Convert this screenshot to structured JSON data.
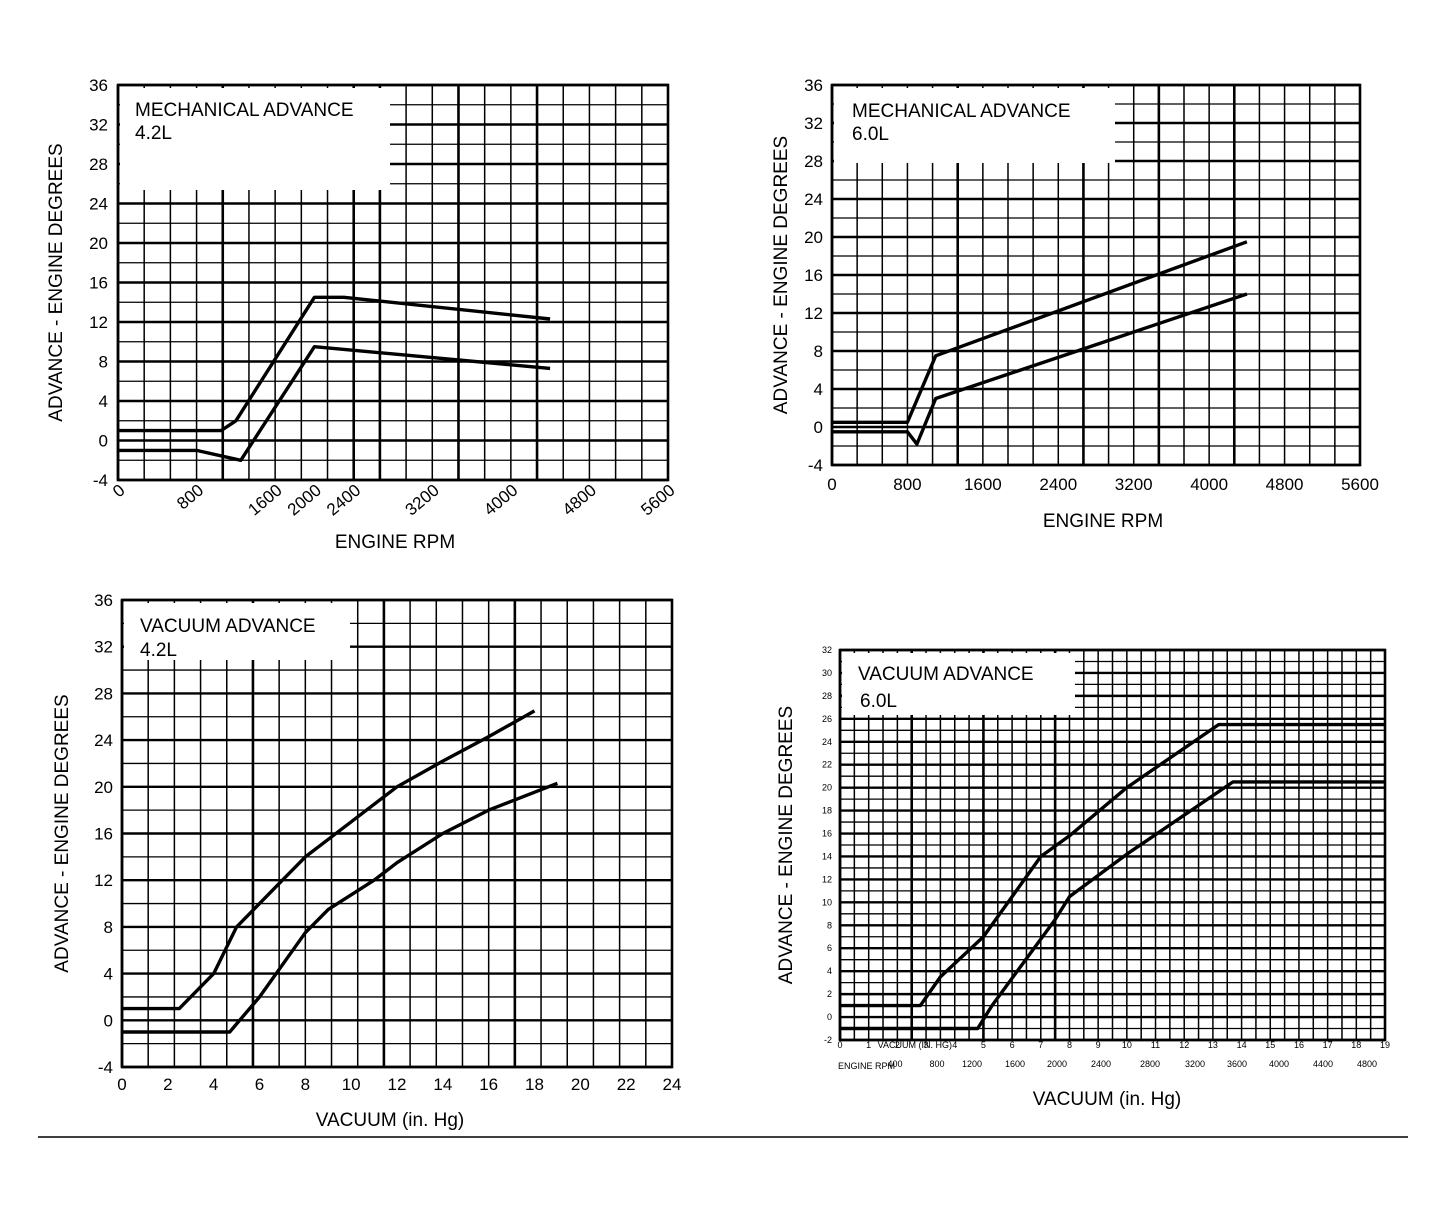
{
  "chart_data": [
    {
      "type": "line",
      "title": "MECHANICAL ADVANCE",
      "subtitle": "4.2L",
      "xlabel": "ENGINE RPM",
      "ylabel": "ADVANCE  -  ENGINE DEGREES",
      "xlim": [
        0,
        5600
      ],
      "ylim": [
        -4,
        36
      ],
      "x_ticks": [
        "0",
        "800",
        "1600",
        "2000",
        "2400",
        "3200",
        "4000",
        "4800",
        "5600"
      ],
      "y_ticks": [
        "36",
        "32",
        "28",
        "24",
        "20",
        "16",
        "12",
        "8",
        "4",
        "0",
        "-4"
      ],
      "grid": true,
      "series": [
        {
          "x": [
            0,
            1050,
            1200,
            2000,
            2300,
            4400
          ],
          "y": [
            1,
            1,
            2,
            14.5,
            14.5,
            12.3
          ]
        },
        {
          "x": [
            0,
            800,
            1250,
            2000,
            4400
          ],
          "y": [
            -1,
            -1,
            -2,
            9.5,
            7.3
          ]
        }
      ]
    },
    {
      "type": "line",
      "title": "MECHANICAL ADVANCE",
      "subtitle": "6.0L",
      "xlabel": "ENGINE RPM",
      "ylabel": "ADVANCE  -  ENGINE DEGREES",
      "xlim": [
        0,
        5600
      ],
      "ylim": [
        -4,
        36
      ],
      "x_ticks": [
        "0",
        "800",
        "1600",
        "2400",
        "3200",
        "4000",
        "4800",
        "5600"
      ],
      "y_ticks": [
        "36",
        "32",
        "28",
        "24",
        "20",
        "16",
        "12",
        "8",
        "4",
        "0",
        "-4"
      ],
      "grid": true,
      "series": [
        {
          "x": [
            0,
            800,
            1100,
            4400
          ],
          "y": [
            0.5,
            0.5,
            7.5,
            19.5
          ]
        },
        {
          "x": [
            0,
            800,
            900,
            1100,
            4400
          ],
          "y": [
            -0.5,
            -0.5,
            -1.8,
            3,
            14
          ]
        }
      ]
    },
    {
      "type": "line",
      "title": "VACUUM ADVANCE",
      "subtitle": "4.2L",
      "xlabel": "VACUUM (in. Hg)",
      "ylabel": "ADVANCE  -  ENGINE DEGREES",
      "xlim": [
        0,
        24
      ],
      "ylim": [
        -4,
        36
      ],
      "x_ticks": [
        "0",
        "2",
        "4",
        "6",
        "8",
        "10",
        "12",
        "14",
        "16",
        "18",
        "20",
        "22",
        "24"
      ],
      "y_ticks": [
        "36",
        "32",
        "28",
        "24",
        "20",
        "16",
        "12",
        "8",
        "4",
        "0",
        "-4"
      ],
      "grid": true,
      "series": [
        {
          "x": [
            0,
            2.5,
            4,
            5,
            7,
            8,
            9,
            10,
            12,
            14,
            16,
            18
          ],
          "y": [
            1,
            1,
            4,
            8,
            12,
            14,
            15.5,
            17,
            20,
            22.2,
            24.3,
            26.5
          ]
        },
        {
          "x": [
            0,
            4.7,
            6,
            8,
            9,
            11,
            12,
            14,
            16,
            19
          ],
          "y": [
            -1,
            -1,
            2,
            7.5,
            9.5,
            12,
            13.5,
            16,
            18,
            20.3
          ]
        }
      ]
    },
    {
      "type": "line",
      "title": "VACUUM ADVANCE",
      "subtitle": "6.0L",
      "xlabel": "VACUUM (in. Hg)",
      "ylabel": "ADVANCE  -  ENGINE DEGREES",
      "xlim": [
        0,
        19
      ],
      "ylim": [
        -2,
        32
      ],
      "x_ticks": [
        "0",
        "1",
        "2",
        "3",
        "4",
        "5",
        "6",
        "7",
        "8",
        "9",
        "10",
        "11",
        "12",
        "13",
        "14",
        "15",
        "16",
        "17",
        "18",
        "19"
      ],
      "x_ticks_title": "VACUUM (IN. HG)",
      "rpm_ticks_title": "ENGINE RPM",
      "rpm_ticks": [
        "400",
        "800",
        "1200",
        "1600",
        "2000",
        "2400",
        "2800",
        "3200",
        "3600",
        "4000",
        "4400",
        "4800"
      ],
      "y_ticks": [
        "32",
        "30",
        "28",
        "26",
        "24",
        "22",
        "20",
        "18",
        "16",
        "14",
        "12",
        "10",
        "8",
        "6",
        "4",
        "2",
        "0",
        "-2"
      ],
      "grid": true,
      "series": [
        {
          "x": [
            0,
            2.8,
            3.5,
            5,
            7,
            8,
            10,
            13.2,
            19
          ],
          "y": [
            1,
            1,
            3.5,
            7,
            14,
            15.8,
            20,
            25.5,
            25.5
          ]
        },
        {
          "x": [
            0,
            4.8,
            5.3,
            7.5,
            8,
            10,
            13.7,
            19
          ],
          "y": [
            -1,
            -1,
            1,
            8.5,
            10.5,
            14.2,
            20.5,
            20.5
          ]
        }
      ]
    }
  ]
}
